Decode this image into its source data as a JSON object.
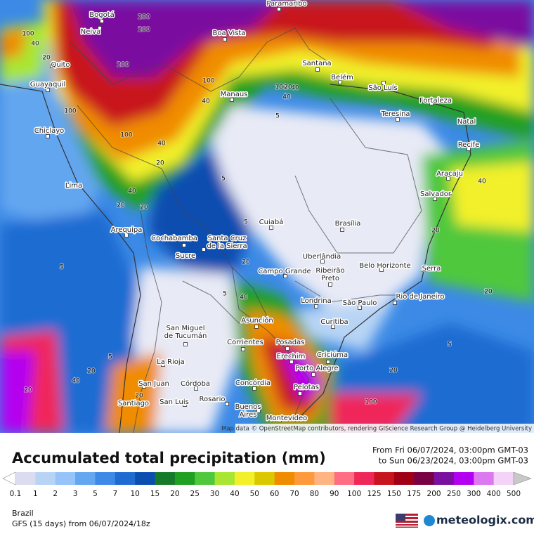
{
  "map": {
    "cities": [
      {
        "lines": [
          "Paramaribo"
        ]
      },
      {
        "lines": [
          "Bogotá"
        ]
      },
      {
        "lines": [
          "Neiva"
        ]
      },
      {
        "lines": [
          "Boa Vista"
        ]
      },
      {
        "lines": [
          "Quito"
        ]
      },
      {
        "lines": [
          "Santana"
        ]
      },
      {
        "lines": [
          "Belém"
        ]
      },
      {
        "lines": [
          "Guayaquil"
        ]
      },
      {
        "lines": [
          "São Luís"
        ]
      },
      {
        "lines": [
          "Manaus"
        ]
      },
      {
        "lines": [
          "Fortaleza"
        ]
      },
      {
        "lines": [
          "Teresina"
        ]
      },
      {
        "lines": [
          "Natal"
        ]
      },
      {
        "lines": [
          "Chiclayo"
        ]
      },
      {
        "lines": [
          "Recife"
        ]
      },
      {
        "lines": [
          "Aracaju"
        ]
      },
      {
        "lines": [
          "Lima"
        ]
      },
      {
        "lines": [
          "Salvador"
        ]
      },
      {
        "lines": [
          "Cuiabá"
        ]
      },
      {
        "lines": [
          "Brasília"
        ]
      },
      {
        "lines": [
          "Arequipa"
        ]
      },
      {
        "lines": [
          "Cochabamba"
        ]
      },
      {
        "lines": [
          "Santa Cruz",
          "de la Sierra"
        ]
      },
      {
        "lines": [
          "Sucre"
        ]
      },
      {
        "lines": [
          "Uberlândia"
        ]
      },
      {
        "lines": [
          "Belo Horizonte"
        ]
      },
      {
        "lines": [
          "Serra"
        ]
      },
      {
        "lines": [
          "Campo Grande"
        ]
      },
      {
        "lines": [
          "Ribeirão",
          "Preto"
        ]
      },
      {
        "lines": [
          "Rio de Janeiro"
        ]
      },
      {
        "lines": [
          "Londrina"
        ]
      },
      {
        "lines": [
          "São Paulo"
        ]
      },
      {
        "lines": [
          "Asunción"
        ]
      },
      {
        "lines": [
          "Curitiba"
        ]
      },
      {
        "lines": [
          "San Miguel",
          "de Tucumán"
        ]
      },
      {
        "lines": [
          "Corrientes"
        ]
      },
      {
        "lines": [
          "Posadas"
        ]
      },
      {
        "lines": [
          "Erechim"
        ]
      },
      {
        "lines": [
          "Criciúma"
        ]
      },
      {
        "lines": [
          "La Rioja"
        ]
      },
      {
        "lines": [
          "Porto Alegre"
        ]
      },
      {
        "lines": [
          "Concórdia"
        ]
      },
      {
        "lines": [
          "San Juan"
        ]
      },
      {
        "lines": [
          "Córdoba"
        ]
      },
      {
        "lines": [
          "Pelotas"
        ]
      },
      {
        "lines": [
          "Rosario"
        ]
      },
      {
        "lines": [
          "Santiago"
        ]
      },
      {
        "lines": [
          "San Luis"
        ]
      },
      {
        "lines": [
          "Buenos",
          "Aires"
        ]
      },
      {
        "lines": [
          "Montevideo"
        ]
      }
    ],
    "contour_labels": [
      100,
      40,
      20,
      200,
      200,
      200,
      100,
      100,
      40,
      20,
      40,
      40,
      100,
      100,
      40,
      20,
      5,
      5,
      5,
      20,
      40,
      20,
      5,
      5,
      20,
      20,
      40,
      20,
      5,
      20,
      40,
      100,
      20,
      5,
      20,
      40,
      20
    ],
    "attribution": "Map data © OpenStreetMap contributors, rendering GIScience Research Group @ Heidelberg University"
  },
  "legend": {
    "title": "Accumulated total precipitation (mm)",
    "from": "From Fri 06/07/2024, 03:00pm GMT-03",
    "to": "to Sun 06/23/2024, 03:00pm GMT-03",
    "labels": [
      0.1,
      1,
      2,
      3,
      5,
      7,
      10,
      15,
      20,
      25,
      30,
      40,
      50,
      60,
      70,
      80,
      90,
      100,
      125,
      150,
      175,
      200,
      250,
      300,
      400,
      500
    ],
    "colors": [
      "#ffffff",
      "#dcdcf0",
      "#b8d4f5",
      "#96c4fa",
      "#64a6f0",
      "#3c8ae6",
      "#1e6cd2",
      "#0c4eb0",
      "#157a2a",
      "#20a020",
      "#50c83c",
      "#a8e632",
      "#f2f02a",
      "#dcc800",
      "#f08c00",
      "#ff9a3c",
      "#ffb482",
      "#ff6e82",
      "#f0285a",
      "#c8141e",
      "#a00014",
      "#7a0046",
      "#7a10a0",
      "#b400f0",
      "#dc78f0",
      "#f5d2f8",
      "#c8c8c8"
    ]
  },
  "footer": {
    "region": "Brazil",
    "model": "GFS (15 days) from 06/07/2024/18z",
    "brand": "meteologix.com"
  }
}
